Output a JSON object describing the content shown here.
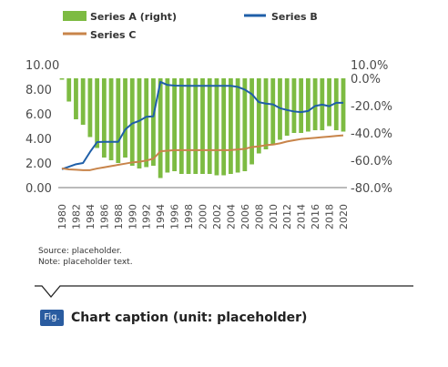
{
  "chart_data": {
    "type": "bar+line",
    "legend": {
      "bars": "Series A (right)",
      "line1": "Series B",
      "line2": "Series C"
    },
    "categories": [
      "1980",
      "1981",
      "1982",
      "1983",
      "1984",
      "1985",
      "1986",
      "1987",
      "1988",
      "1989",
      "1990",
      "1991",
      "1992",
      "1993",
      "1994",
      "1995",
      "1996",
      "1997",
      "1998",
      "1999",
      "2000",
      "2001",
      "2002",
      "2003",
      "2004",
      "2005",
      "2006",
      "2007",
      "2008",
      "2009",
      "2010",
      "2011",
      "2012",
      "2013",
      "2014",
      "2015",
      "2016",
      "2017",
      "2018",
      "2019",
      "2020"
    ],
    "x_tick_labels": [
      "1980",
      "1982",
      "1984",
      "1986",
      "1988",
      "1990",
      "1992",
      "1994",
      "1996",
      "1998",
      "2000",
      "2002",
      "2004",
      "2006",
      "2008",
      "2010",
      "2012",
      "2014",
      "2016",
      "2018",
      "2020"
    ],
    "y_left": {
      "ticks": [
        "0.00",
        "2.00",
        "4.00",
        "6.00",
        "8.00",
        "10.00"
      ],
      "range": [
        0,
        10
      ]
    },
    "y_right": {
      "ticks": [
        "10.0%",
        "0.0%",
        "-20.0%",
        "-40.0%",
        "-60.0%",
        "-80.0%"
      ],
      "range": [
        -80,
        10
      ]
    },
    "series": [
      {
        "axis": "right",
        "color": "#7dbb42",
        "values": [
          -1.0,
          -17.0,
          -30.0,
          -34.0,
          -43.0,
          -51.0,
          -58.0,
          -60.0,
          -62.0,
          -58.0,
          -64.0,
          -66.0,
          -65.0,
          -64.0,
          -73.0,
          -69.0,
          -68.0,
          -70.0,
          -70.0,
          -70.0,
          -70.0,
          -70.0,
          -71.0,
          -71.0,
          -70.0,
          -69.0,
          -68.0,
          -63.0,
          -55.0,
          -52.0,
          -49.0,
          -45.0,
          -42.0,
          -40.0,
          -40.0,
          -39.0,
          -38.0,
          -38.0,
          -35.0,
          -38.0,
          -39.0
        ]
      },
      {
        "axis": "left",
        "color": "#1f5fa8",
        "values": [
          1.5,
          1.7,
          1.9,
          2.0,
          2.9,
          3.7,
          3.72,
          3.72,
          3.72,
          4.72,
          5.22,
          5.43,
          5.76,
          5.8,
          8.6,
          8.35,
          8.3,
          8.29,
          8.28,
          8.28,
          8.28,
          8.28,
          8.28,
          8.28,
          8.28,
          8.19,
          7.97,
          7.6,
          6.95,
          6.83,
          6.77,
          6.46,
          6.31,
          6.19,
          6.14,
          6.23,
          6.64,
          6.75,
          6.62,
          6.9,
          6.9
        ]
      },
      {
        "axis": "left",
        "color": "#c8844a",
        "values": [
          1.56,
          1.48,
          1.45,
          1.42,
          1.42,
          1.55,
          1.65,
          1.75,
          1.85,
          1.95,
          2.05,
          2.1,
          2.2,
          2.35,
          2.95,
          3.0,
          3.05,
          3.05,
          3.05,
          3.05,
          3.05,
          3.05,
          3.05,
          3.05,
          3.05,
          3.1,
          3.15,
          3.3,
          3.35,
          3.45,
          3.5,
          3.6,
          3.75,
          3.85,
          3.95,
          4.0,
          4.05,
          4.1,
          4.15,
          4.2,
          4.25
        ]
      }
    ]
  },
  "notes": {
    "source": "Source: placeholder.",
    "note": "Note: placeholder text."
  },
  "caption": {
    "badge": "Fig. 1",
    "text": "Chart caption (unit: placeholder)"
  }
}
